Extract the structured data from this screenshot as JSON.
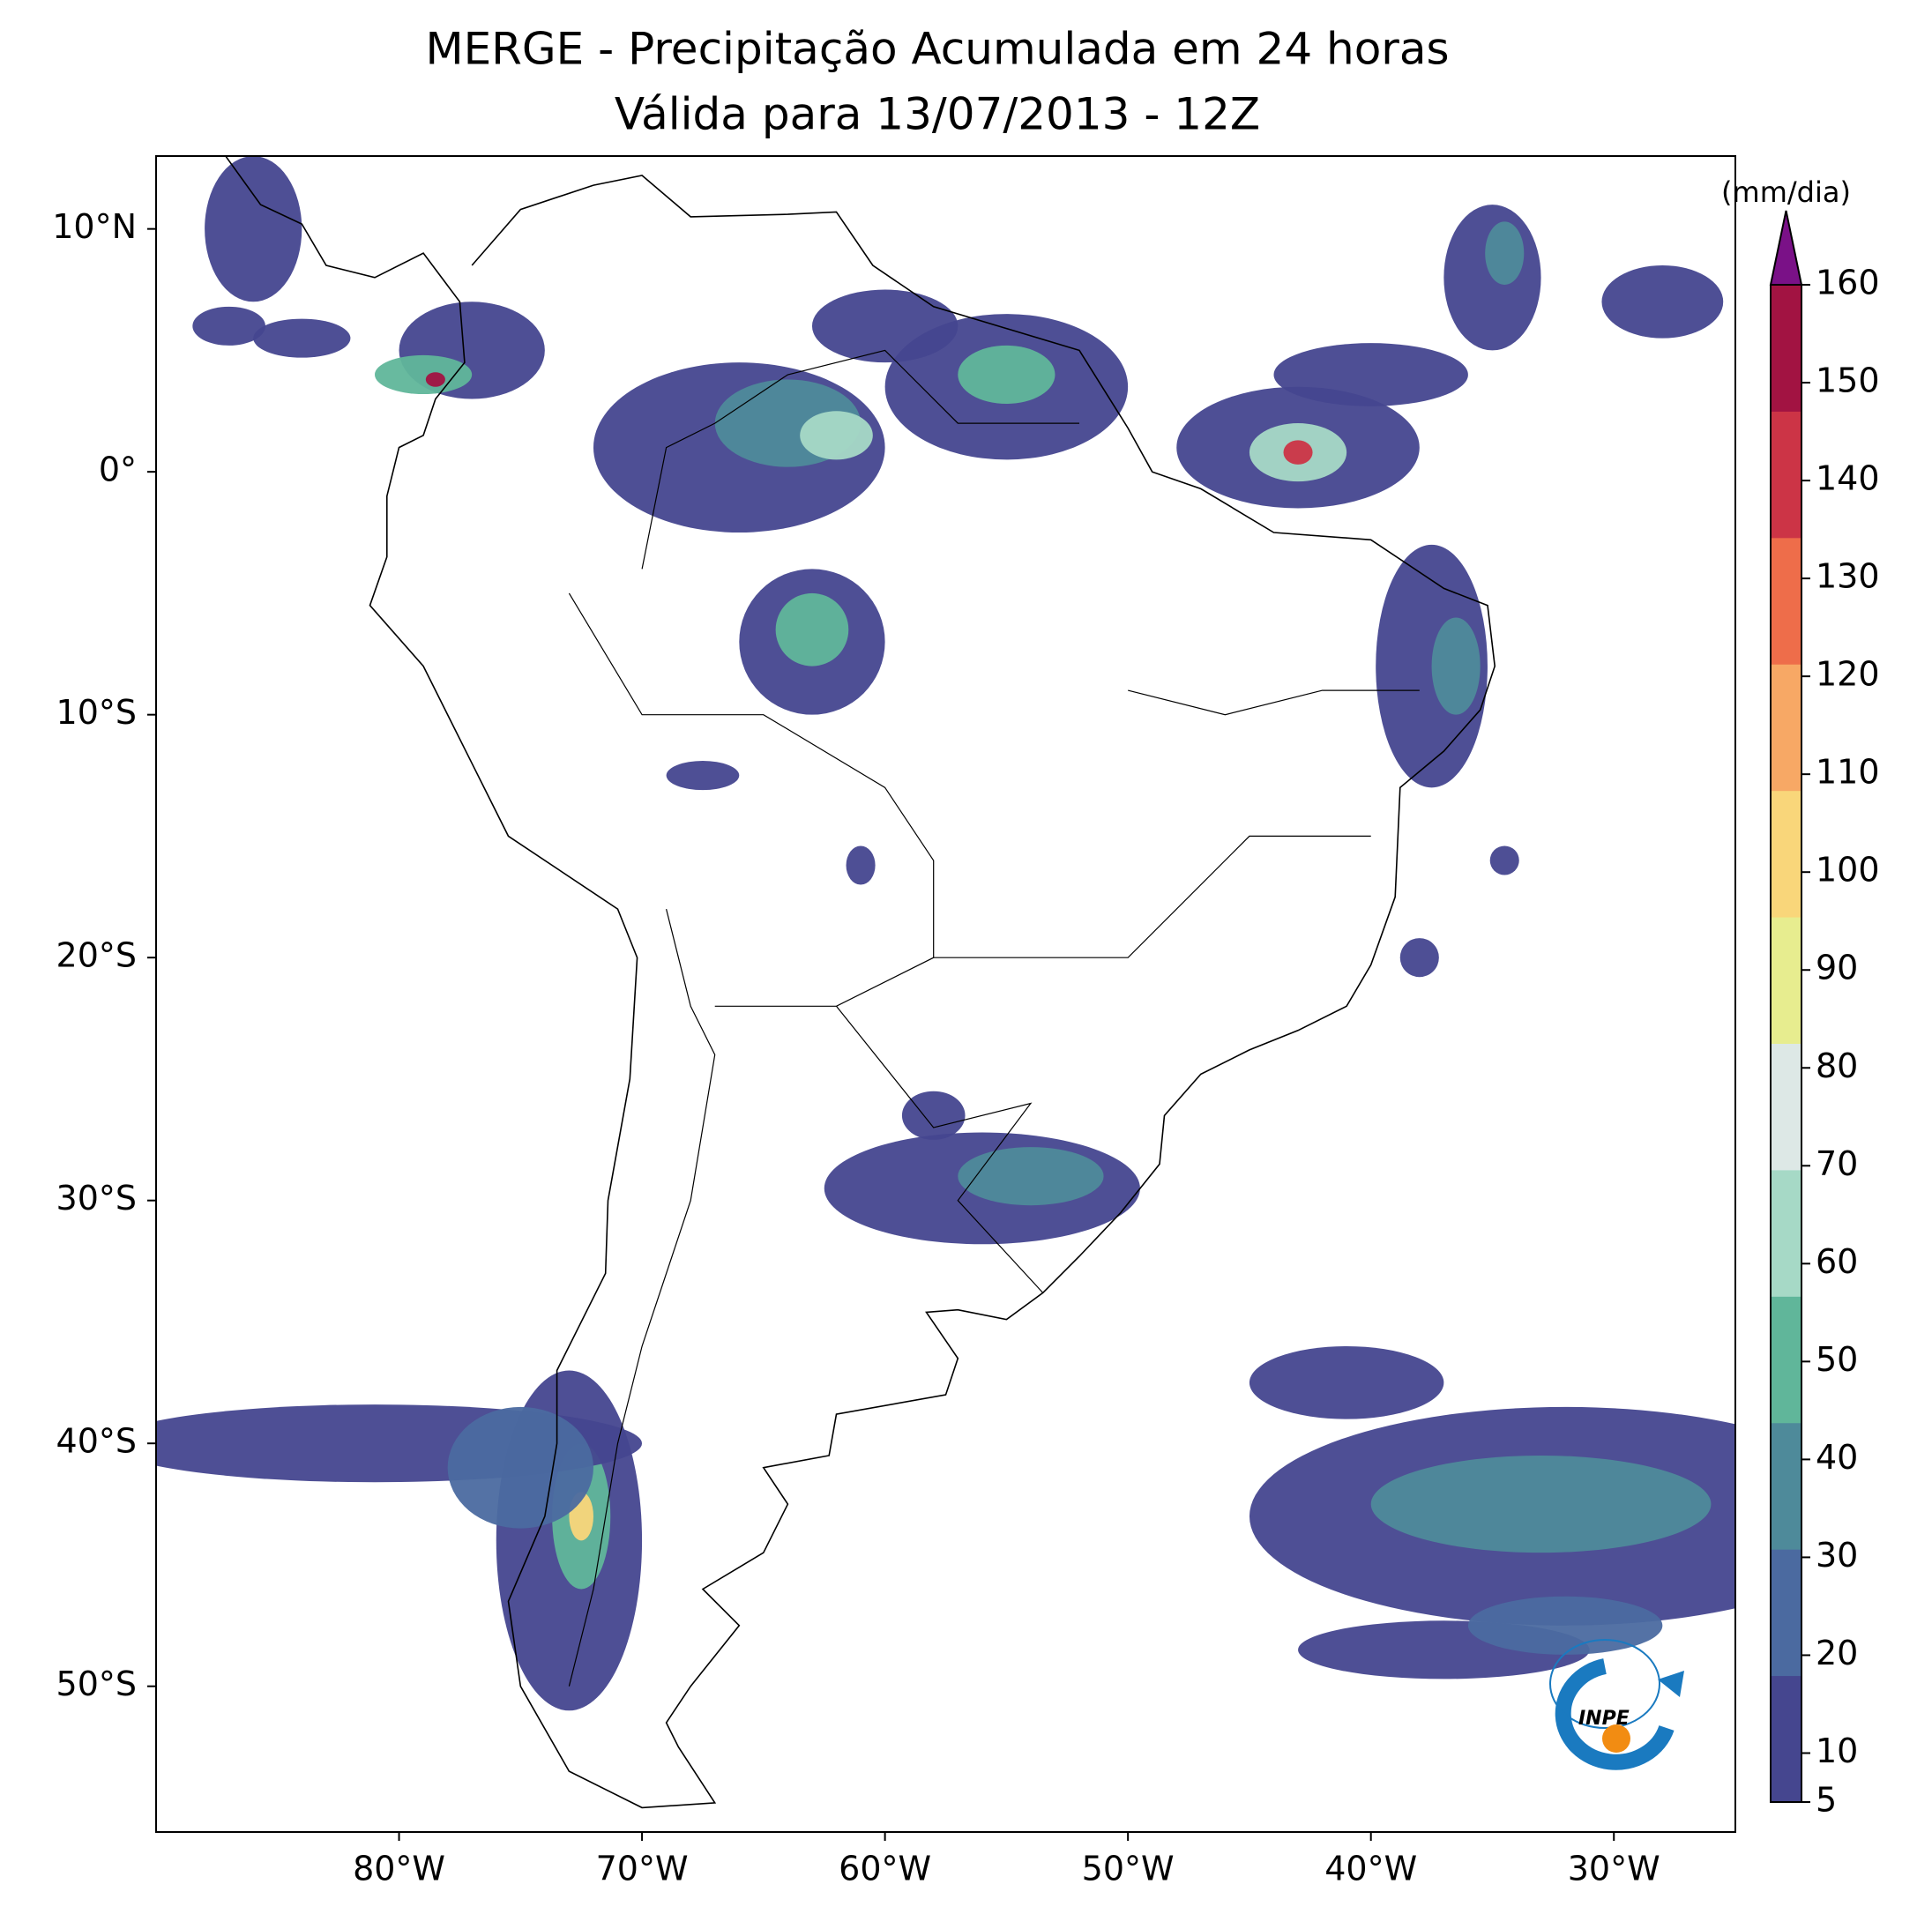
{
  "chart_data": {
    "type": "map",
    "title": "MERGE - Precipitação Acumulada em 24 horas",
    "subtitle": "Válida para 13/07/2013 - 12Z",
    "xlim": [
      -90,
      -25
    ],
    "ylim": [
      -56,
      13
    ],
    "xticks": [
      {
        "value": -80,
        "label": "80°W"
      },
      {
        "value": -70,
        "label": "70°W"
      },
      {
        "value": -60,
        "label": "60°W"
      },
      {
        "value": -50,
        "label": "50°W"
      },
      {
        "value": -40,
        "label": "40°W"
      },
      {
        "value": -30,
        "label": "30°W"
      }
    ],
    "yticks": [
      {
        "value": 10,
        "label": "10°N"
      },
      {
        "value": 0,
        "label": "0°"
      },
      {
        "value": -10,
        "label": "10°S"
      },
      {
        "value": -20,
        "label": "20°S"
      },
      {
        "value": -30,
        "label": "30°S"
      },
      {
        "value": -40,
        "label": "40°S"
      },
      {
        "value": -50,
        "label": "50°S"
      }
    ],
    "colorbar": {
      "label": "(mm/dia)",
      "lim": [
        5,
        160
      ],
      "ticks": [
        5,
        10,
        20,
        30,
        40,
        50,
        60,
        70,
        80,
        90,
        100,
        110,
        120,
        130,
        140,
        150,
        160
      ],
      "colors": [
        "#45468f",
        "#4b6aa0",
        "#4e8a9a",
        "#60b69a",
        "#a6d9c6",
        "#dde8e6",
        "#e7ed8f",
        "#f9d67a",
        "#f7a865",
        "#ee6d4a",
        "#cc3446",
        "#a21342"
      ],
      "extend_color": "#7a1187"
    },
    "logo_text": "INPE"
  }
}
